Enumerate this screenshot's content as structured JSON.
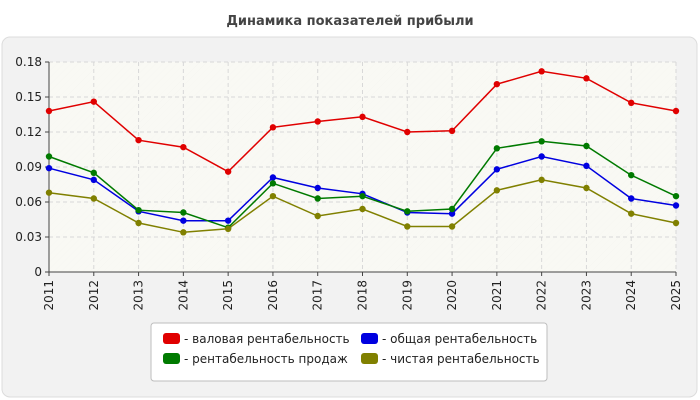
{
  "chart_data": {
    "type": "line",
    "title": "Динамика показателей прибыли",
    "xlabel": "",
    "ylabel": "",
    "x": [
      "2011",
      "2012",
      "2013",
      "2014",
      "2015",
      "2016",
      "2017",
      "2018",
      "2019",
      "2020",
      "2021",
      "2022",
      "2023",
      "2024",
      "2025"
    ],
    "ylim": [
      0,
      0.18
    ],
    "yticks": [
      "0",
      "0.03",
      "0.06",
      "0.09",
      "0.12",
      "0.15",
      "0.18"
    ],
    "grid": true,
    "legend_position": "bottom",
    "series": [
      {
        "name": "валовая рентабельность",
        "color": "#e00000",
        "values": [
          0.138,
          0.146,
          0.113,
          0.107,
          0.086,
          0.124,
          0.129,
          0.133,
          0.12,
          0.121,
          0.161,
          0.172,
          0.166,
          0.145,
          0.138
        ]
      },
      {
        "name": "общая рентабельность",
        "color": "#0000e0",
        "values": [
          0.089,
          0.079,
          0.052,
          0.044,
          0.044,
          0.081,
          0.072,
          0.067,
          0.051,
          0.05,
          0.088,
          0.099,
          0.091,
          0.063,
          0.057
        ]
      },
      {
        "name": "рентабельность продаж",
        "color": "#007a00",
        "values": [
          0.099,
          0.085,
          0.053,
          0.051,
          0.038,
          0.076,
          0.063,
          0.065,
          0.052,
          0.054,
          0.106,
          0.112,
          0.108,
          0.083,
          0.065
        ]
      },
      {
        "name": "чистая рентабельность",
        "color": "#808000",
        "values": [
          0.068,
          0.063,
          0.042,
          0.034,
          0.037,
          0.065,
          0.048,
          0.054,
          0.039,
          0.039,
          0.07,
          0.079,
          0.072,
          0.05,
          0.042
        ]
      }
    ],
    "legend_order": [
      0,
      1,
      2,
      3
    ]
  }
}
